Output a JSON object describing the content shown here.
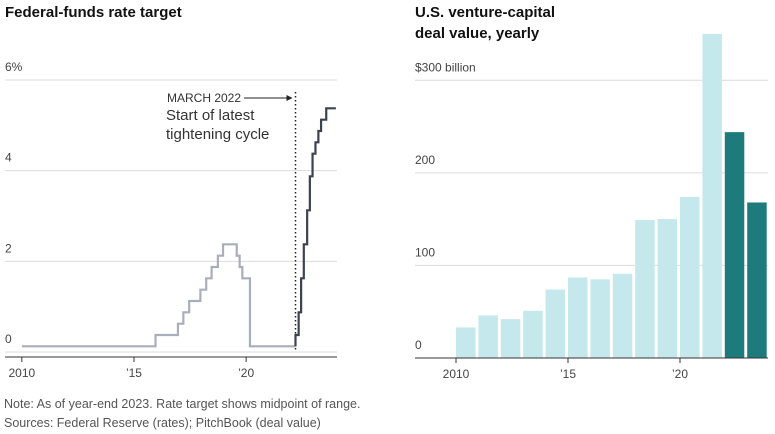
{
  "chart_data": [
    {
      "type": "line",
      "title": [
        "Federal-funds rate target"
      ],
      "xlim": [
        2009.25,
        2024.05
      ],
      "ylim": [
        0,
        6
      ],
      "xticks": [
        2010,
        {
          "value": 2015,
          "label": "’15"
        },
        {
          "value": 2020,
          "label": "’20"
        }
      ],
      "yticks": [
        0,
        2,
        4,
        {
          "value": 6,
          "label": "6%"
        }
      ],
      "grid": true,
      "series": [
        {
          "color": "#a9aebb",
          "x": [
            2010,
            2015.96,
            2015.96,
            2016.96,
            2016.96,
            2017.2,
            2017.2,
            2017.46,
            2017.46,
            2017.96,
            2017.96,
            2018.22,
            2018.22,
            2018.46,
            2018.46,
            2018.74,
            2018.74,
            2018.97,
            2018.97,
            2019.58,
            2019.58,
            2019.71,
            2019.71,
            2019.83,
            2019.83,
            2020.17,
            2020.17,
            2022.2
          ],
          "values": [
            0.125,
            0.125,
            0.375,
            0.375,
            0.625,
            0.625,
            0.875,
            0.875,
            1.125,
            1.125,
            1.375,
            1.375,
            1.625,
            1.625,
            1.875,
            1.875,
            2.125,
            2.125,
            2.375,
            2.375,
            2.125,
            2.125,
            1.875,
            1.875,
            1.625,
            1.625,
            0.125,
            0.125
          ]
        },
        {
          "color": "#3d4250",
          "x": [
            2022.2,
            2022.2,
            2022.34,
            2022.34,
            2022.45,
            2022.45,
            2022.57,
            2022.57,
            2022.72,
            2022.72,
            2022.84,
            2022.84,
            2022.96,
            2022.96,
            2023.09,
            2023.09,
            2023.22,
            2023.22,
            2023.34,
            2023.34,
            2023.57,
            2023.57,
            2024.0
          ],
          "values": [
            0.125,
            0.375,
            0.375,
            0.875,
            0.875,
            1.625,
            1.625,
            2.375,
            2.375,
            3.125,
            3.125,
            3.875,
            3.875,
            4.375,
            4.375,
            4.625,
            4.625,
            4.875,
            4.875,
            5.125,
            5.125,
            5.375,
            5.375
          ]
        }
      ],
      "annotation": {
        "text": "MARCH 2022",
        "x": 2022.2,
        "note": [
          "Start of latest",
          "tightening cycle"
        ]
      }
    },
    {
      "type": "bar",
      "title": [
        "U.S. venture-capital",
        "deal value, yearly"
      ],
      "categories": [
        "2010",
        null,
        null,
        null,
        null,
        "’15",
        null,
        null,
        null,
        null,
        "’20",
        null,
        null,
        null
      ],
      "values": [
        33,
        46,
        42,
        51,
        74,
        87,
        85,
        91,
        149,
        150,
        174,
        350,
        244,
        168
      ],
      "colors": [
        "#c5e8ec",
        "#c5e8ec",
        "#c5e8ec",
        "#c5e8ec",
        "#c5e8ec",
        "#c5e8ec",
        "#c5e8ec",
        "#c5e8ec",
        "#c5e8ec",
        "#c5e8ec",
        "#c5e8ec",
        "#c5e8ec",
        "#1e7b7b",
        "#1e7b7b"
      ],
      "ylim": [
        0,
        350
      ],
      "yticks": [
        0,
        100,
        200,
        {
          "value": 300,
          "label": "$300 billion"
        }
      ],
      "grid": true
    }
  ],
  "notes": [
    "Note: As of year-end 2023. Rate target shows midpoint of range.",
    "Sources: Federal Reserve (rates); PitchBook (deal value)"
  ]
}
